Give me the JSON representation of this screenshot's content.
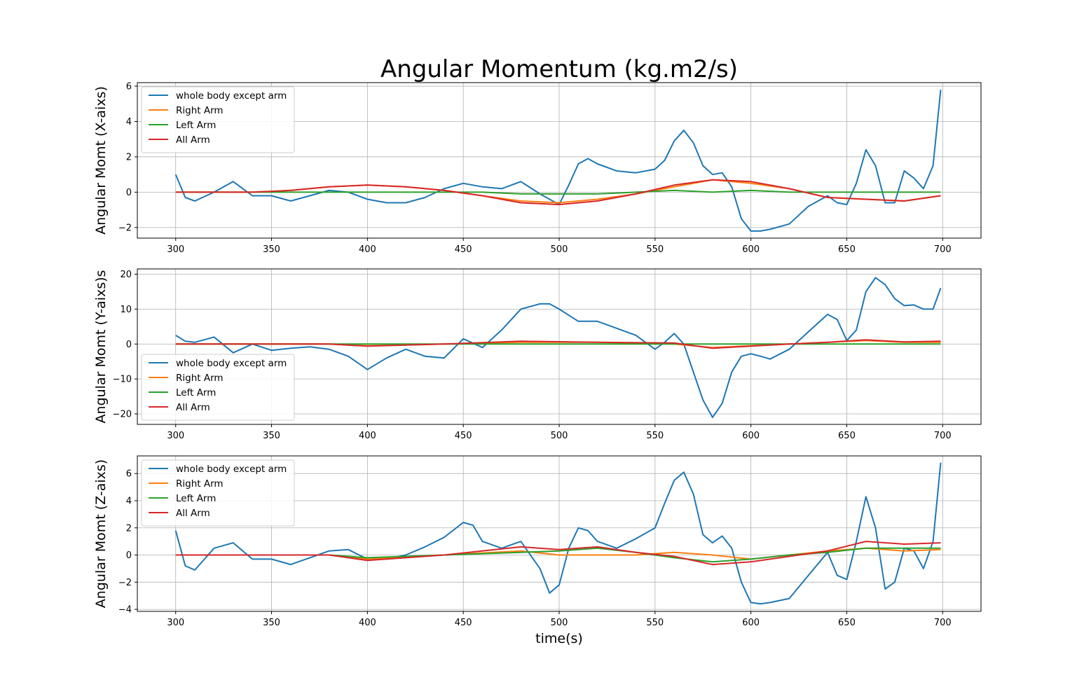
{
  "title": "Angular Momentum (kg.m2/s)",
  "xlabel": "time(s)",
  "colors": {
    "whole_body": "#1f77b4",
    "right_arm": "#ff7f0e",
    "left_arm": "#2ca02c",
    "all_arm": "#d62728",
    "grid": "#b0b0b0"
  },
  "chart_data": [
    {
      "type": "line",
      "title": "Angular Momentum (kg.m2/s)",
      "xlabel": "",
      "ylabel": "Angular Momt (X-aixs)",
      "xlim": [
        280,
        720
      ],
      "ylim": [
        -2.6,
        6.2
      ],
      "xticks": [
        300,
        350,
        400,
        450,
        500,
        550,
        600,
        650,
        700
      ],
      "yticks": [
        -2,
        0,
        2,
        4,
        6
      ],
      "grid": true,
      "legend_location": "upper-left",
      "series": [
        {
          "name": "whole body except arm",
          "color": "#1f77b4",
          "x": [
            300,
            305,
            310,
            320,
            330,
            340,
            350,
            360,
            370,
            380,
            390,
            400,
            410,
            420,
            430,
            440,
            450,
            460,
            470,
            480,
            490,
            500,
            505,
            510,
            515,
            520,
            530,
            540,
            550,
            555,
            560,
            565,
            570,
            575,
            580,
            585,
            590,
            595,
            600,
            605,
            610,
            620,
            630,
            640,
            645,
            650,
            655,
            660,
            665,
            670,
            675,
            680,
            685,
            690,
            695,
            699
          ],
          "y": [
            1.0,
            -0.3,
            -0.5,
            0.0,
            0.6,
            -0.2,
            -0.2,
            -0.5,
            -0.2,
            0.1,
            0.0,
            -0.4,
            -0.6,
            -0.6,
            -0.3,
            0.2,
            0.5,
            0.3,
            0.2,
            0.6,
            -0.1,
            -0.7,
            0.4,
            1.6,
            1.9,
            1.6,
            1.2,
            1.1,
            1.3,
            1.8,
            2.9,
            3.5,
            2.8,
            1.5,
            1.0,
            1.1,
            0.3,
            -1.5,
            -2.2,
            -2.2,
            -2.1,
            -1.8,
            -0.8,
            -0.2,
            -0.6,
            -0.7,
            0.5,
            2.4,
            1.5,
            -0.6,
            -0.6,
            1.2,
            0.8,
            0.2,
            1.5,
            5.8
          ]
        },
        {
          "name": "Right Arm",
          "color": "#ff7f0e",
          "x": [
            300,
            320,
            340,
            360,
            380,
            400,
            420,
            440,
            460,
            480,
            500,
            520,
            540,
            560,
            580,
            600,
            620,
            640,
            660,
            680,
            699
          ],
          "y": [
            0.0,
            0.0,
            0.0,
            0.1,
            0.3,
            0.4,
            0.3,
            0.1,
            -0.2,
            -0.5,
            -0.6,
            -0.4,
            -0.1,
            0.3,
            0.7,
            0.5,
            0.2,
            -0.3,
            -0.4,
            -0.5,
            -0.2
          ]
        },
        {
          "name": "Left Arm",
          "color": "#2ca02c",
          "x": [
            300,
            320,
            340,
            360,
            380,
            400,
            420,
            440,
            460,
            480,
            500,
            520,
            540,
            560,
            580,
            600,
            620,
            640,
            660,
            680,
            699
          ],
          "y": [
            0.0,
            0.0,
            0.0,
            0.0,
            0.0,
            0.0,
            0.0,
            0.0,
            0.0,
            -0.1,
            -0.1,
            -0.1,
            0.0,
            0.1,
            0.0,
            0.1,
            0.0,
            0.0,
            0.0,
            0.0,
            0.0
          ]
        },
        {
          "name": "All Arm",
          "color": "#d62728",
          "x": [
            300,
            320,
            340,
            360,
            380,
            400,
            420,
            440,
            460,
            480,
            500,
            520,
            540,
            560,
            580,
            600,
            620,
            640,
            660,
            680,
            699
          ],
          "y": [
            0.0,
            0.0,
            0.0,
            0.1,
            0.3,
            0.4,
            0.3,
            0.1,
            -0.2,
            -0.6,
            -0.7,
            -0.5,
            -0.1,
            0.4,
            0.7,
            0.6,
            0.2,
            -0.3,
            -0.4,
            -0.5,
            -0.2
          ]
        }
      ]
    },
    {
      "type": "line",
      "xlabel": "",
      "ylabel": "Angular Momt (Y-aixs)s",
      "xlim": [
        280,
        720
      ],
      "ylim": [
        -23,
        21.5
      ],
      "xticks": [
        300,
        350,
        400,
        450,
        500,
        550,
        600,
        650,
        700
      ],
      "yticks": [
        -20,
        -10,
        0,
        10,
        20
      ],
      "grid": true,
      "legend_location": "lower-left",
      "series": [
        {
          "name": "whole body except arm",
          "color": "#1f77b4",
          "x": [
            300,
            305,
            310,
            320,
            330,
            340,
            350,
            360,
            370,
            380,
            390,
            400,
            410,
            420,
            430,
            440,
            450,
            460,
            470,
            480,
            490,
            495,
            500,
            510,
            520,
            530,
            540,
            550,
            555,
            560,
            565,
            570,
            575,
            580,
            585,
            590,
            595,
            600,
            605,
            610,
            620,
            630,
            640,
            645,
            650,
            655,
            660,
            665,
            670,
            675,
            680,
            685,
            690,
            695,
            699
          ],
          "y": [
            2.5,
            0.8,
            0.5,
            2.0,
            -2.5,
            0.0,
            -1.8,
            -1.2,
            -0.8,
            -1.5,
            -3.5,
            -7.3,
            -4.0,
            -1.5,
            -3.5,
            -4.0,
            1.5,
            -1.0,
            4.0,
            10.0,
            11.5,
            11.5,
            10.0,
            6.5,
            6.5,
            4.5,
            2.5,
            -1.5,
            0.5,
            3.0,
            0.0,
            -8.0,
            -16.0,
            -21.0,
            -17.0,
            -8.0,
            -3.5,
            -2.8,
            -3.5,
            -4.3,
            -1.5,
            3.5,
            8.5,
            7.0,
            1.0,
            4.0,
            15.0,
            19.0,
            17.0,
            13.0,
            11.0,
            11.2,
            10.0,
            10.0,
            16.0
          ]
        },
        {
          "name": "Right Arm",
          "color": "#ff7f0e",
          "x": [
            300,
            340,
            380,
            400,
            440,
            480,
            520,
            560,
            580,
            600,
            620,
            640,
            660,
            680,
            699
          ],
          "y": [
            0.0,
            0.0,
            0.0,
            -0.5,
            0.0,
            0.5,
            0.5,
            0.0,
            -1.0,
            -0.5,
            0.0,
            0.5,
            1.0,
            0.5,
            0.5
          ]
        },
        {
          "name": "Left Arm",
          "color": "#2ca02c",
          "x": [
            300,
            340,
            380,
            400,
            440,
            480,
            520,
            560,
            580,
            600,
            620,
            640,
            660,
            680,
            699
          ],
          "y": [
            0.0,
            0.0,
            0.0,
            0.0,
            0.0,
            0.0,
            0.0,
            0.0,
            0.0,
            0.0,
            0.0,
            0.0,
            0.0,
            0.0,
            0.0
          ]
        },
        {
          "name": "All Arm",
          "color": "#d62728",
          "x": [
            300,
            340,
            380,
            400,
            440,
            480,
            520,
            560,
            580,
            600,
            620,
            640,
            660,
            680,
            699
          ],
          "y": [
            0.0,
            0.0,
            0.0,
            -0.6,
            0.0,
            0.8,
            0.5,
            0.3,
            -1.2,
            -0.6,
            0.0,
            0.5,
            1.2,
            0.6,
            0.8
          ]
        }
      ]
    },
    {
      "type": "line",
      "xlabel": "time(s)",
      "ylabel": "Angular Momt (Z-aixs)",
      "xlim": [
        280,
        720
      ],
      "ylim": [
        -4.15,
        7.3
      ],
      "xticks": [
        300,
        350,
        400,
        450,
        500,
        550,
        600,
        650,
        700
      ],
      "yticks": [
        -4,
        -2,
        0,
        2,
        4,
        6
      ],
      "grid": true,
      "legend_location": "upper-left",
      "series": [
        {
          "name": "whole body except arm",
          "color": "#1f77b4",
          "x": [
            300,
            305,
            310,
            320,
            330,
            340,
            350,
            360,
            370,
            380,
            390,
            400,
            410,
            420,
            430,
            440,
            450,
            455,
            460,
            470,
            480,
            490,
            495,
            500,
            505,
            510,
            515,
            520,
            530,
            540,
            550,
            555,
            560,
            565,
            570,
            575,
            580,
            585,
            590,
            595,
            600,
            605,
            610,
            620,
            630,
            640,
            645,
            650,
            655,
            660,
            665,
            670,
            675,
            680,
            685,
            690,
            695,
            699
          ],
          "y": [
            1.8,
            -0.8,
            -1.1,
            0.5,
            0.9,
            -0.3,
            -0.3,
            -0.7,
            -0.2,
            0.3,
            0.4,
            -0.3,
            -0.3,
            0.0,
            0.6,
            1.3,
            2.4,
            2.2,
            1.0,
            0.5,
            1.0,
            -1.0,
            -2.8,
            -2.2,
            0.5,
            2.0,
            1.8,
            1.0,
            0.5,
            1.2,
            2.0,
            3.8,
            5.5,
            6.1,
            4.5,
            1.5,
            0.9,
            1.4,
            0.5,
            -2.0,
            -3.5,
            -3.6,
            -3.5,
            -3.2,
            -1.5,
            0.2,
            -1.5,
            -1.8,
            1.0,
            4.3,
            2.0,
            -2.5,
            -2.0,
            0.5,
            0.3,
            -1.0,
            1.0,
            6.8
          ]
        },
        {
          "name": "Right Arm",
          "color": "#ff7f0e",
          "x": [
            300,
            340,
            380,
            400,
            440,
            480,
            500,
            520,
            540,
            560,
            580,
            600,
            620,
            640,
            660,
            680,
            699
          ],
          "y": [
            0.0,
            0.0,
            0.0,
            -0.3,
            0.0,
            0.3,
            0.0,
            0.0,
            0.0,
            0.2,
            0.0,
            -0.3,
            0.0,
            0.3,
            0.5,
            0.3,
            0.4
          ]
        },
        {
          "name": "Left Arm",
          "color": "#2ca02c",
          "x": [
            300,
            340,
            380,
            400,
            440,
            480,
            500,
            520,
            540,
            560,
            580,
            600,
            620,
            640,
            660,
            680,
            699
          ],
          "y": [
            0.0,
            0.0,
            0.0,
            -0.2,
            0.0,
            0.2,
            0.3,
            0.5,
            0.2,
            -0.2,
            -0.5,
            -0.3,
            0.0,
            0.2,
            0.5,
            0.5,
            0.5
          ]
        },
        {
          "name": "All Arm",
          "color": "#d62728",
          "x": [
            300,
            340,
            380,
            400,
            440,
            480,
            500,
            520,
            540,
            560,
            580,
            600,
            620,
            640,
            660,
            680,
            699
          ],
          "y": [
            0.0,
            0.0,
            0.0,
            -0.4,
            0.0,
            0.6,
            0.4,
            0.6,
            0.2,
            -0.1,
            -0.7,
            -0.5,
            -0.1,
            0.3,
            1.0,
            0.8,
            0.9
          ]
        }
      ]
    }
  ]
}
